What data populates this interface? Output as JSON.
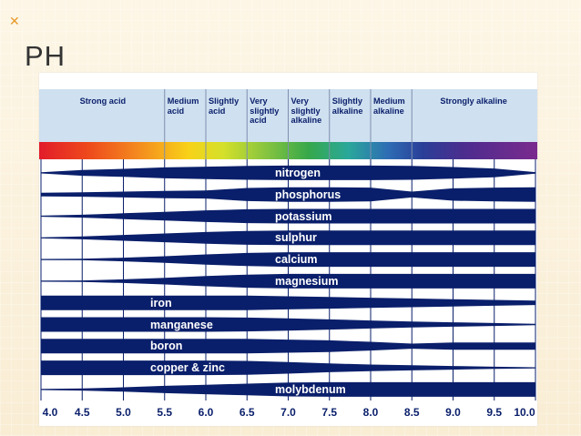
{
  "slide": {
    "title": "PH"
  },
  "zones": [
    {
      "label": "Strong acid",
      "from": 4.0,
      "to": 5.5
    },
    {
      "label": "Medium\nacid",
      "from": 5.5,
      "to": 6.0
    },
    {
      "label": "Slightly\nacid",
      "from": 6.0,
      "to": 6.5
    },
    {
      "label": "Very\nslightly\nacid",
      "from": 6.5,
      "to": 7.0
    },
    {
      "label": "Very\nslightly\nalkaline",
      "from": 7.0,
      "to": 7.5
    },
    {
      "label": "Slightly\nalkaline",
      "from": 7.5,
      "to": 8.0
    },
    {
      "label": "Medium\nalkaline",
      "from": 8.0,
      "to": 8.5
    },
    {
      "label": "Strongly alkaline",
      "from": 8.5,
      "to": 10.0
    }
  ],
  "x_ticks": [
    "4.0",
    "4.5",
    "5.0",
    "5.5",
    "6.0",
    "6.5",
    "7.0",
    "7.5",
    "8.0",
    "8.5",
    "9.0",
    "9.5",
    "10.0"
  ],
  "chart_data": {
    "type": "area",
    "xlim": [
      4.0,
      10.0
    ],
    "x": [
      4.0,
      4.5,
      5.0,
      5.5,
      6.0,
      6.5,
      7.0,
      7.5,
      8.0,
      8.5,
      9.0,
      9.5,
      10.0
    ],
    "series": [
      {
        "name": "nitrogen",
        "values": [
          0.0,
          0.4,
          0.55,
          0.75,
          0.85,
          0.95,
          1.0,
          1.0,
          1.0,
          0.95,
          0.8,
          0.6,
          0.1
        ]
      },
      {
        "name": "phosphorus",
        "values": [
          0.25,
          0.3,
          0.4,
          0.5,
          0.55,
          0.9,
          1.0,
          1.0,
          0.95,
          0.4,
          0.85,
          0.95,
          1.0
        ]
      },
      {
        "name": "potassium",
        "values": [
          0.0,
          0.2,
          0.4,
          0.6,
          0.8,
          0.95,
          1.0,
          1.0,
          1.0,
          1.0,
          1.0,
          1.0,
          1.0
        ]
      },
      {
        "name": "sulphur",
        "values": [
          0.0,
          0.2,
          0.4,
          0.6,
          0.8,
          0.95,
          1.0,
          1.0,
          1.0,
          1.0,
          1.0,
          1.0,
          1.0
        ]
      },
      {
        "name": "calcium",
        "values": [
          0.0,
          0.1,
          0.25,
          0.45,
          0.7,
          0.9,
          1.0,
          1.0,
          1.0,
          1.0,
          1.0,
          1.0,
          1.0
        ]
      },
      {
        "name": "magnesium",
        "values": [
          0.0,
          0.1,
          0.25,
          0.45,
          0.7,
          0.9,
          1.0,
          1.0,
          1.0,
          1.0,
          1.0,
          1.0,
          1.0
        ]
      },
      {
        "name": "iron",
        "values": [
          1.0,
          1.0,
          1.0,
          1.0,
          1.0,
          1.0,
          0.9,
          0.8,
          0.7,
          0.6,
          0.5,
          0.4,
          0.3
        ]
      },
      {
        "name": "manganese",
        "values": [
          1.0,
          1.0,
          1.0,
          1.0,
          1.0,
          0.95,
          0.85,
          0.7,
          0.55,
          0.4,
          0.3,
          0.2,
          0.1
        ]
      },
      {
        "name": "boron",
        "values": [
          1.0,
          1.0,
          1.0,
          1.0,
          1.0,
          1.0,
          0.9,
          0.8,
          0.6,
          0.35,
          0.5,
          0.5,
          0.5
        ]
      },
      {
        "name": "copper & zinc",
        "values": [
          1.0,
          1.0,
          1.0,
          1.0,
          1.0,
          0.95,
          0.8,
          0.6,
          0.45,
          0.35,
          0.25,
          0.15,
          0.05
        ]
      },
      {
        "name": "molybdenum",
        "values": [
          0.0,
          0.15,
          0.3,
          0.5,
          0.65,
          0.8,
          0.95,
          1.0,
          1.0,
          1.0,
          1.0,
          1.0,
          1.0
        ]
      }
    ]
  },
  "colors": {
    "band": "#0a1f6b",
    "header_bg": "#cfe0f0",
    "grid": "#0a1f6b",
    "label": "#ffffff"
  }
}
